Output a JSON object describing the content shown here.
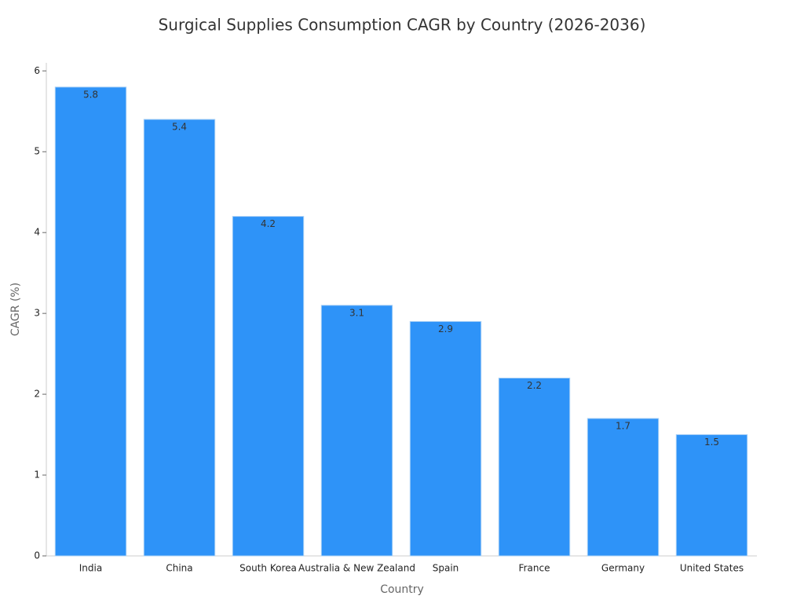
{
  "chart_data": {
    "type": "bar",
    "title": "Surgical Supplies Consumption CAGR by Country (2026-2036)",
    "x_label": "Country",
    "y_label": "CAGR (%)",
    "categories": [
      "India",
      "China",
      "South Korea",
      "Australia & New Zealand",
      "Spain",
      "France",
      "Germany",
      "United States"
    ],
    "values": [
      5.8,
      5.4,
      4.2,
      3.1,
      2.9,
      2.2,
      1.7,
      1.5
    ],
    "color": "#2e93f8",
    "ylim": [
      0,
      6.1
    ],
    "yticks": [
      0,
      1,
      2,
      3,
      4,
      5,
      6
    ],
    "grid": false
  }
}
